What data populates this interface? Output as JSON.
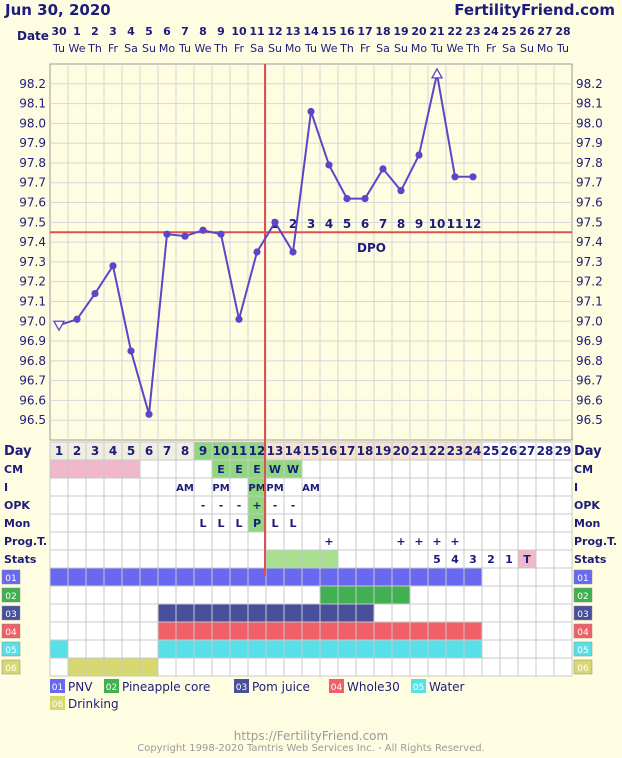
{
  "header": {
    "date": "Jun 30, 2020",
    "site": "FertilityFriend.com"
  },
  "colors": {
    "background": "#fffde1",
    "temp_line": "#5a46c8",
    "coverline": "#e05050",
    "fertile_green": "#8fd880",
    "pink": "#f0b8c8",
    "light_green": "#a8e090",
    "accent_blue": "#1c1c7a"
  },
  "date_row": {
    "label": "Date",
    "dates": [
      "30",
      "1",
      "2",
      "3",
      "4",
      "5",
      "6",
      "7",
      "8",
      "9",
      "10",
      "11",
      "12",
      "13",
      "14",
      "15",
      "16",
      "17",
      "18",
      "19",
      "20",
      "21",
      "22",
      "23",
      "24",
      "25",
      "26",
      "27",
      "28"
    ],
    "weekdays": [
      "Tu",
      "We",
      "Th",
      "Fr",
      "Sa",
      "Su",
      "Mo",
      "Tu",
      "We",
      "Th",
      "Fr",
      "Sa",
      "Su",
      "Mo",
      "Tu",
      "We",
      "Th",
      "Fr",
      "Sa",
      "Su",
      "Mo",
      "Tu",
      "We",
      "Th",
      "Fr",
      "Sa",
      "Su",
      "Mo",
      "Tu"
    ]
  },
  "chart_data": {
    "type": "line",
    "title": "",
    "y_ticks": [
      "98.2",
      "98.1",
      "98.0",
      "97.9",
      "97.8",
      "97.7",
      "97.6",
      "97.5",
      "97.4",
      "97.3",
      "97.2",
      "97.1",
      "97.0",
      "96.9",
      "96.8",
      "96.7",
      "96.6",
      "96.5"
    ],
    "ylim": [
      96.4,
      98.3
    ],
    "x": [
      1,
      2,
      3,
      4,
      5,
      6,
      7,
      8,
      9,
      10,
      11,
      12,
      13,
      14,
      15,
      16,
      17,
      18,
      19,
      20,
      21,
      22,
      23,
      24
    ],
    "temps": [
      96.98,
      97.01,
      97.14,
      97.28,
      96.85,
      96.53,
      97.44,
      97.43,
      97.46,
      97.44,
      97.01,
      97.35,
      97.5,
      97.35,
      98.06,
      97.79,
      97.62,
      97.62,
      97.77,
      97.66,
      97.84,
      98.25,
      97.73,
      97.73
    ],
    "open_triangle_days": [
      1,
      22
    ],
    "coverline_temp": 97.45,
    "ovulation_day": 12,
    "dpo_label": "DPO",
    "dpo_numbers": [
      "1",
      "2",
      "3",
      "4",
      "5",
      "6",
      "7",
      "8",
      "9",
      "10",
      "11",
      "12"
    ],
    "grid": true
  },
  "rows": {
    "day": {
      "label": "Day",
      "values": [
        "1",
        "2",
        "3",
        "4",
        "5",
        "6",
        "7",
        "8",
        "9",
        "10",
        "11",
        "12",
        "13",
        "14",
        "15",
        "16",
        "17",
        "18",
        "19",
        "20",
        "21",
        "22",
        "23",
        "24",
        "25",
        "26",
        "27",
        "28",
        "29"
      ]
    },
    "cm": {
      "label": "CM",
      "values": [
        "",
        "",
        "",
        "",
        "",
        "",
        "",
        "",
        "",
        "E",
        "E",
        "E",
        "W",
        "W",
        "",
        "",
        "",
        "",
        "",
        "",
        "",
        "",
        "",
        "",
        "",
        "",
        "",
        "",
        ""
      ]
    },
    "i": {
      "label": "I",
      "values": [
        "",
        "",
        "",
        "",
        "",
        "",
        "",
        "AM",
        "",
        "PM",
        "",
        "PM",
        "PM",
        "",
        "AM",
        "",
        "",
        "",
        "",
        "",
        "",
        "",
        "",
        "",
        "",
        "",
        "",
        "",
        ""
      ]
    },
    "opk": {
      "label": "OPK",
      "values": [
        "",
        "",
        "",
        "",
        "",
        "",
        "",
        "",
        "-",
        "-",
        "-",
        "+",
        "-",
        "-",
        "",
        "",
        "",
        "",
        "",
        "",
        "",
        "",
        "",
        "",
        "",
        "",
        "",
        "",
        ""
      ]
    },
    "mon": {
      "label": "Mon",
      "values": [
        "",
        "",
        "",
        "",
        "",
        "",
        "",
        "",
        "L",
        "L",
        "L",
        "P",
        "L",
        "L",
        "",
        "",
        "",
        "",
        "",
        "",
        "",
        "",
        "",
        "",
        "",
        "",
        "",
        "",
        ""
      ]
    },
    "prog": {
      "label": "Prog.T.",
      "values": [
        "",
        "",
        "",
        "",
        "",
        "",
        "",
        "",
        "",
        "",
        "",
        "",
        "",
        "",
        "",
        "+",
        "",
        "",
        "",
        "+",
        "+",
        "+",
        "+",
        "",
        "",
        "",
        "",
        "",
        ""
      ]
    },
    "stats": {
      "label": "Stats",
      "values": [
        "",
        "",
        "",
        "",
        "",
        "",
        "",
        "",
        "",
        "",
        "",
        "",
        "",
        "",
        "",
        "",
        "",
        "",
        "",
        "",
        "",
        "5",
        "4",
        "3",
        "2",
        "1",
        "T",
        "",
        ""
      ]
    }
  },
  "custom_rows": [
    {
      "code": "01",
      "name": "PNV",
      "color": "#6868f0",
      "start": 1,
      "end": 24
    },
    {
      "code": "02",
      "name": "Pineapple core",
      "color": "#40b050",
      "start": 16,
      "end": 20
    },
    {
      "code": "03",
      "name": "Pom juice",
      "color": "#48509c",
      "start": 7,
      "end": 18
    },
    {
      "code": "04",
      "name": "Whole30",
      "color": "#f06068",
      "start": 7,
      "end": 24
    },
    {
      "code": "05",
      "name": "Water",
      "color": "#58e0e8",
      "start": 1,
      "end": 24,
      "skip": [
        2,
        3,
        4,
        5,
        6
      ]
    },
    {
      "code": "06",
      "name": "Drinking",
      "color": "#d8d870",
      "start": 2,
      "end": 6
    }
  ],
  "footer": {
    "url": "https://FertilityFriend.com",
    "copyright": "Copyright 1998-2020 Tamtris Web Services Inc. - All Rights Reserved."
  }
}
